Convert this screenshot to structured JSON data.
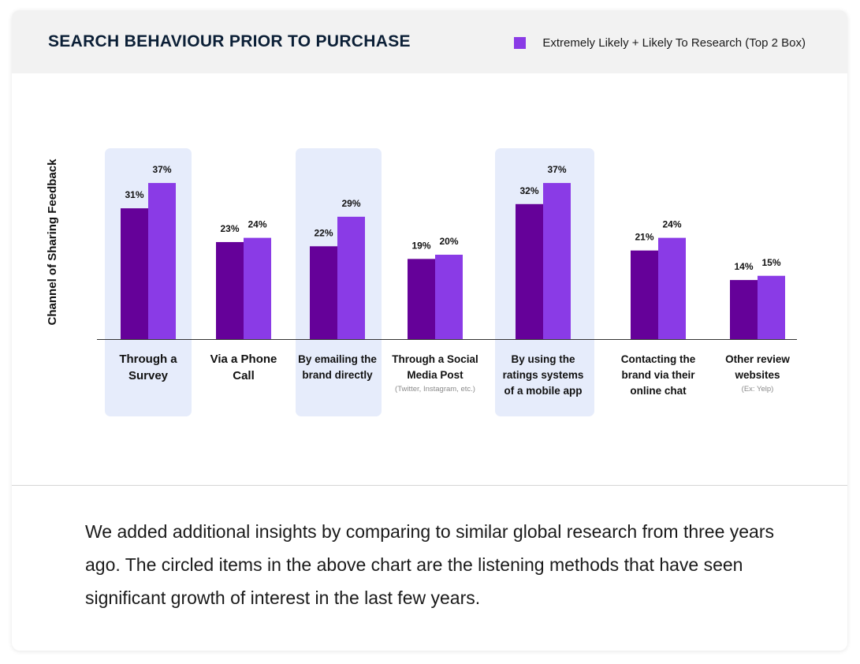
{
  "header": {
    "title": "SEARCH BEHAVIOUR PRIOR TO PURCHASE",
    "legend_label": "Extremely Likely + Likely To Research (Top 2 Box)"
  },
  "colors": {
    "dark_bar": "#650199",
    "light_bar": "#8a3be6",
    "highlight": "#e6ecfb",
    "legend_swatch": "#8a3be6"
  },
  "chart_data": {
    "type": "bar",
    "ylabel": "Channel of Sharing Feedback",
    "categories": [
      "Through a Survey",
      "Via a Phone Call",
      "By emailing the brand directly",
      "Through a Social Media Post",
      "By using the ratings systems of a mobile app",
      "Contacting the brand via their online chat",
      "Other review websites"
    ],
    "category_lines": [
      [
        "Through a",
        "Survey"
      ],
      [
        "Via a Phone",
        "Call"
      ],
      [
        "By emailing the",
        "brand directly"
      ],
      [
        "Through a Social",
        "Media Post"
      ],
      [
        "By using the",
        "ratings systems",
        "of a mobile app"
      ],
      [
        "Contacting the",
        "brand via their",
        "online chat"
      ],
      [
        "Other review",
        "websites"
      ]
    ],
    "category_notes": [
      "",
      "",
      "",
      "(Twitter, Instagram, etc.)",
      "",
      "",
      "(Ex: Yelp)"
    ],
    "series": [
      {
        "values": [
          31,
          23,
          22,
          19,
          32,
          21,
          14
        ]
      },
      {
        "name": "Extremely Likely + Likely To Research (Top 2 Box)",
        "values": [
          37,
          24,
          29,
          20,
          37,
          24,
          15
        ]
      }
    ],
    "value_labels": [
      [
        "31%",
        "23%",
        "22%",
        "19%",
        "32%",
        "21%",
        "14%"
      ],
      [
        "37%",
        "24%",
        "29%",
        "20%",
        "37%",
        "24%",
        "15%"
      ]
    ],
    "highlighted_categories": [
      0,
      2,
      4
    ],
    "ylim": [
      0,
      40
    ],
    "grid": false,
    "legend_position": "top-right"
  },
  "body_text": "We added additional insights by comparing to similar global research from three years ago. The circled items in the above chart are the listening methods that have seen significant growth of interest in the last few years."
}
